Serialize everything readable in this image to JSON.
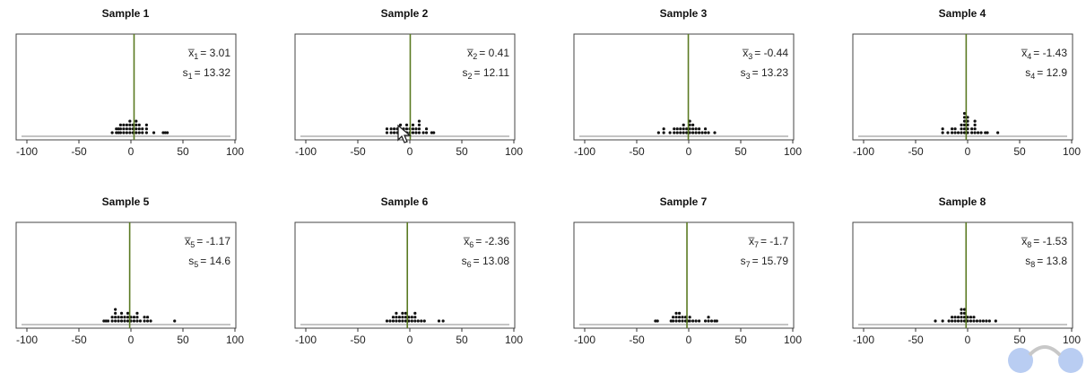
{
  "chart_data": [
    {
      "type": "scatter",
      "title": "Sample 1",
      "mean_sym": "x̅",
      "mean_sub": "1",
      "mean_val": "= 3.01",
      "sd_sym": "s",
      "sd_sub": "1",
      "sd_val": "= 13.32",
      "xlim": [
        -100,
        100
      ],
      "xticks": [
        "-100",
        "-50",
        "0",
        "50",
        "100"
      ],
      "mean_line": 3,
      "points": [
        [
          -18,
          1
        ],
        [
          -14,
          1
        ],
        [
          -14,
          2
        ],
        [
          -12,
          1
        ],
        [
          -12,
          2
        ],
        [
          -10,
          1
        ],
        [
          -10,
          2
        ],
        [
          -10,
          3
        ],
        [
          -7,
          1
        ],
        [
          -7,
          2
        ],
        [
          -7,
          3
        ],
        [
          -4,
          1
        ],
        [
          -4,
          2
        ],
        [
          -4,
          3
        ],
        [
          -1,
          1
        ],
        [
          -1,
          2
        ],
        [
          -1,
          3
        ],
        [
          -1,
          4
        ],
        [
          2,
          1
        ],
        [
          2,
          2
        ],
        [
          2,
          3
        ],
        [
          5,
          1
        ],
        [
          5,
          2
        ],
        [
          5,
          3
        ],
        [
          5,
          4
        ],
        [
          8,
          1
        ],
        [
          8,
          2
        ],
        [
          8,
          3
        ],
        [
          11,
          1
        ],
        [
          11,
          2
        ],
        [
          15,
          1
        ],
        [
          15,
          2
        ],
        [
          15,
          3
        ],
        [
          22,
          1
        ],
        [
          31,
          1
        ],
        [
          33,
          1
        ],
        [
          35,
          1
        ]
      ]
    },
    {
      "type": "scatter",
      "title": "Sample 2",
      "mean_sym": "x̅",
      "mean_sub": "2",
      "mean_val": "= 0.41",
      "sd_sym": "s",
      "sd_sub": "2",
      "sd_val": "= 12.11",
      "xlim": [
        -100,
        100
      ],
      "xticks": [
        "-100",
        "-50",
        "0",
        "50",
        "100"
      ],
      "mean_line": 0.4,
      "points": [
        [
          -22,
          1
        ],
        [
          -22,
          2
        ],
        [
          -18,
          1
        ],
        [
          -18,
          2
        ],
        [
          -15,
          1
        ],
        [
          -15,
          2
        ],
        [
          -12,
          1
        ],
        [
          -12,
          2
        ],
        [
          -9,
          1
        ],
        [
          -9,
          2
        ],
        [
          -9,
          3
        ],
        [
          -6,
          1
        ],
        [
          -6,
          2
        ],
        [
          -3,
          1
        ],
        [
          -3,
          2
        ],
        [
          -3,
          3
        ],
        [
          0,
          1
        ],
        [
          0,
          2
        ],
        [
          3,
          1
        ],
        [
          3,
          2
        ],
        [
          3,
          3
        ],
        [
          6,
          1
        ],
        [
          6,
          2
        ],
        [
          9,
          1
        ],
        [
          9,
          2
        ],
        [
          9,
          3
        ],
        [
          9,
          4
        ],
        [
          13,
          1
        ],
        [
          16,
          1
        ],
        [
          16,
          2
        ],
        [
          21,
          1
        ],
        [
          23,
          1
        ]
      ]
    },
    {
      "type": "scatter",
      "title": "Sample 3",
      "mean_sym": "x̅",
      "mean_sub": "3",
      "mean_val": "= -0.44",
      "sd_sym": "s",
      "sd_sub": "3",
      "sd_val": "= 13.23",
      "xlim": [
        -100,
        100
      ],
      "xticks": [
        "-100",
        "-50",
        "0",
        "50",
        "100"
      ],
      "mean_line": -0.4,
      "points": [
        [
          -29,
          1
        ],
        [
          -24,
          1
        ],
        [
          -24,
          2
        ],
        [
          -18,
          1
        ],
        [
          -14,
          1
        ],
        [
          -14,
          2
        ],
        [
          -11,
          1
        ],
        [
          -11,
          2
        ],
        [
          -8,
          1
        ],
        [
          -8,
          2
        ],
        [
          -5,
          1
        ],
        [
          -5,
          2
        ],
        [
          -5,
          3
        ],
        [
          -2,
          1
        ],
        [
          -2,
          2
        ],
        [
          1,
          1
        ],
        [
          1,
          2
        ],
        [
          1,
          3
        ],
        [
          1,
          4
        ],
        [
          4,
          1
        ],
        [
          4,
          2
        ],
        [
          4,
          3
        ],
        [
          7,
          1
        ],
        [
          7,
          2
        ],
        [
          10,
          1
        ],
        [
          10,
          2
        ],
        [
          13,
          1
        ],
        [
          16,
          1
        ],
        [
          16,
          2
        ],
        [
          19,
          1
        ],
        [
          25,
          1
        ]
      ]
    },
    {
      "type": "scatter",
      "title": "Sample 4",
      "mean_sym": "x̅",
      "mean_sub": "4",
      "mean_val": "= -1.43",
      "sd_sym": "s",
      "sd_sub": "4",
      "sd_val": "= 12.9",
      "xlim": [
        -100,
        100
      ],
      "xticks": [
        "-100",
        "-50",
        "0",
        "50",
        "100"
      ],
      "mean_line": -1.4,
      "points": [
        [
          -24,
          1
        ],
        [
          -24,
          2
        ],
        [
          -19,
          1
        ],
        [
          -15,
          1
        ],
        [
          -15,
          2
        ],
        [
          -12,
          1
        ],
        [
          -12,
          2
        ],
        [
          -9,
          1
        ],
        [
          -6,
          1
        ],
        [
          -6,
          2
        ],
        [
          -6,
          3
        ],
        [
          -3,
          1
        ],
        [
          -3,
          2
        ],
        [
          -3,
          3
        ],
        [
          -3,
          4
        ],
        [
          -3,
          5
        ],
        [
          -3,
          6
        ],
        [
          0,
          1
        ],
        [
          0,
          2
        ],
        [
          0,
          3
        ],
        [
          0,
          4
        ],
        [
          0,
          5
        ],
        [
          4,
          1
        ],
        [
          4,
          2
        ],
        [
          7,
          1
        ],
        [
          7,
          2
        ],
        [
          7,
          3
        ],
        [
          7,
          4
        ],
        [
          10,
          1
        ],
        [
          13,
          1
        ],
        [
          17,
          1
        ],
        [
          19,
          1
        ],
        [
          29,
          1
        ]
      ]
    },
    {
      "type": "scatter",
      "title": "Sample 5",
      "mean_sym": "x̅",
      "mean_sub": "5",
      "mean_val": "= -1.17",
      "sd_sym": "s",
      "sd_sub": "5",
      "sd_val": "= 14.6",
      "xlim": [
        -100,
        100
      ],
      "xticks": [
        "-100",
        "-50",
        "0",
        "50",
        "100"
      ],
      "mean_line": -1.2,
      "points": [
        [
          -26,
          1
        ],
        [
          -24,
          1
        ],
        [
          -22,
          1
        ],
        [
          -18,
          1
        ],
        [
          -18,
          2
        ],
        [
          -15,
          1
        ],
        [
          -15,
          2
        ],
        [
          -15,
          3
        ],
        [
          -15,
          4
        ],
        [
          -12,
          1
        ],
        [
          -12,
          2
        ],
        [
          -9,
          1
        ],
        [
          -9,
          2
        ],
        [
          -9,
          3
        ],
        [
          -6,
          1
        ],
        [
          -6,
          2
        ],
        [
          -3,
          1
        ],
        [
          -3,
          2
        ],
        [
          -3,
          3
        ],
        [
          0,
          1
        ],
        [
          0,
          2
        ],
        [
          3,
          1
        ],
        [
          3,
          2
        ],
        [
          6,
          1
        ],
        [
          6,
          2
        ],
        [
          6,
          3
        ],
        [
          9,
          1
        ],
        [
          13,
          1
        ],
        [
          13,
          2
        ],
        [
          16,
          1
        ],
        [
          16,
          2
        ],
        [
          19,
          1
        ],
        [
          42,
          1
        ]
      ]
    },
    {
      "type": "scatter",
      "title": "Sample 6",
      "mean_sym": "x̅",
      "mean_sub": "6",
      "mean_val": "= -2.36",
      "sd_sym": "s",
      "sd_sub": "6",
      "sd_val": "= 13.08",
      "xlim": [
        -100,
        100
      ],
      "xticks": [
        "-100",
        "-50",
        "0",
        "50",
        "100"
      ],
      "mean_line": -2.4,
      "points": [
        [
          -22,
          1
        ],
        [
          -19,
          1
        ],
        [
          -16,
          1
        ],
        [
          -16,
          2
        ],
        [
          -13,
          1
        ],
        [
          -13,
          2
        ],
        [
          -13,
          3
        ],
        [
          -10,
          1
        ],
        [
          -10,
          2
        ],
        [
          -7,
          1
        ],
        [
          -7,
          2
        ],
        [
          -7,
          3
        ],
        [
          -4,
          1
        ],
        [
          -4,
          2
        ],
        [
          -4,
          3
        ],
        [
          -1,
          1
        ],
        [
          -1,
          2
        ],
        [
          2,
          1
        ],
        [
          2,
          2
        ],
        [
          5,
          1
        ],
        [
          5,
          2
        ],
        [
          5,
          3
        ],
        [
          8,
          1
        ],
        [
          11,
          1
        ],
        [
          14,
          1
        ],
        [
          28,
          1
        ],
        [
          32,
          1
        ]
      ]
    },
    {
      "type": "scatter",
      "title": "Sample 7",
      "mean_sym": "x̅",
      "mean_sub": "7",
      "mean_val": "= -1.7",
      "sd_sym": "s",
      "sd_sub": "7",
      "sd_val": "= 15.79",
      "xlim": [
        -100,
        100
      ],
      "xticks": [
        "-100",
        "-50",
        "0",
        "50",
        "100"
      ],
      "mean_line": -1.7,
      "points": [
        [
          -32,
          1
        ],
        [
          -30,
          1
        ],
        [
          -17,
          1
        ],
        [
          -15,
          1
        ],
        [
          -15,
          2
        ],
        [
          -12,
          1
        ],
        [
          -12,
          2
        ],
        [
          -12,
          3
        ],
        [
          -9,
          1
        ],
        [
          -9,
          2
        ],
        [
          -9,
          3
        ],
        [
          -6,
          1
        ],
        [
          -6,
          2
        ],
        [
          -3,
          1
        ],
        [
          -3,
          2
        ],
        [
          -1,
          1
        ],
        [
          1,
          1
        ],
        [
          1,
          2
        ],
        [
          4,
          1
        ],
        [
          7,
          1
        ],
        [
          10,
          1
        ],
        [
          16,
          1
        ],
        [
          19,
          1
        ],
        [
          19,
          2
        ],
        [
          22,
          1
        ],
        [
          25,
          1
        ],
        [
          27,
          1
        ]
      ]
    },
    {
      "type": "scatter",
      "title": "Sample 8",
      "mean_sym": "x̅",
      "mean_sub": "8",
      "mean_val": "= -1.53",
      "sd_sym": "s",
      "sd_sub": "8",
      "sd_val": "= 13.8",
      "xlim": [
        -100,
        100
      ],
      "xticks": [
        "-100",
        "-50",
        "0",
        "50",
        "100"
      ],
      "mean_line": -1.5,
      "points": [
        [
          -31,
          1
        ],
        [
          -24,
          1
        ],
        [
          -18,
          1
        ],
        [
          -15,
          1
        ],
        [
          -15,
          2
        ],
        [
          -12,
          1
        ],
        [
          -12,
          2
        ],
        [
          -9,
          1
        ],
        [
          -9,
          2
        ],
        [
          -6,
          1
        ],
        [
          -6,
          2
        ],
        [
          -6,
          3
        ],
        [
          -6,
          4
        ],
        [
          -3,
          1
        ],
        [
          -3,
          2
        ],
        [
          -3,
          3
        ],
        [
          -3,
          4
        ],
        [
          0,
          1
        ],
        [
          0,
          2
        ],
        [
          3,
          1
        ],
        [
          3,
          2
        ],
        [
          6,
          1
        ],
        [
          6,
          2
        ],
        [
          9,
          1
        ],
        [
          12,
          1
        ],
        [
          15,
          1
        ],
        [
          18,
          1
        ],
        [
          21,
          1
        ],
        [
          27,
          1
        ]
      ]
    }
  ],
  "colors": {
    "mean_line": "#5a7a22",
    "points": "#111111",
    "frame": "#444444",
    "bubble": "#b9cdf2"
  }
}
